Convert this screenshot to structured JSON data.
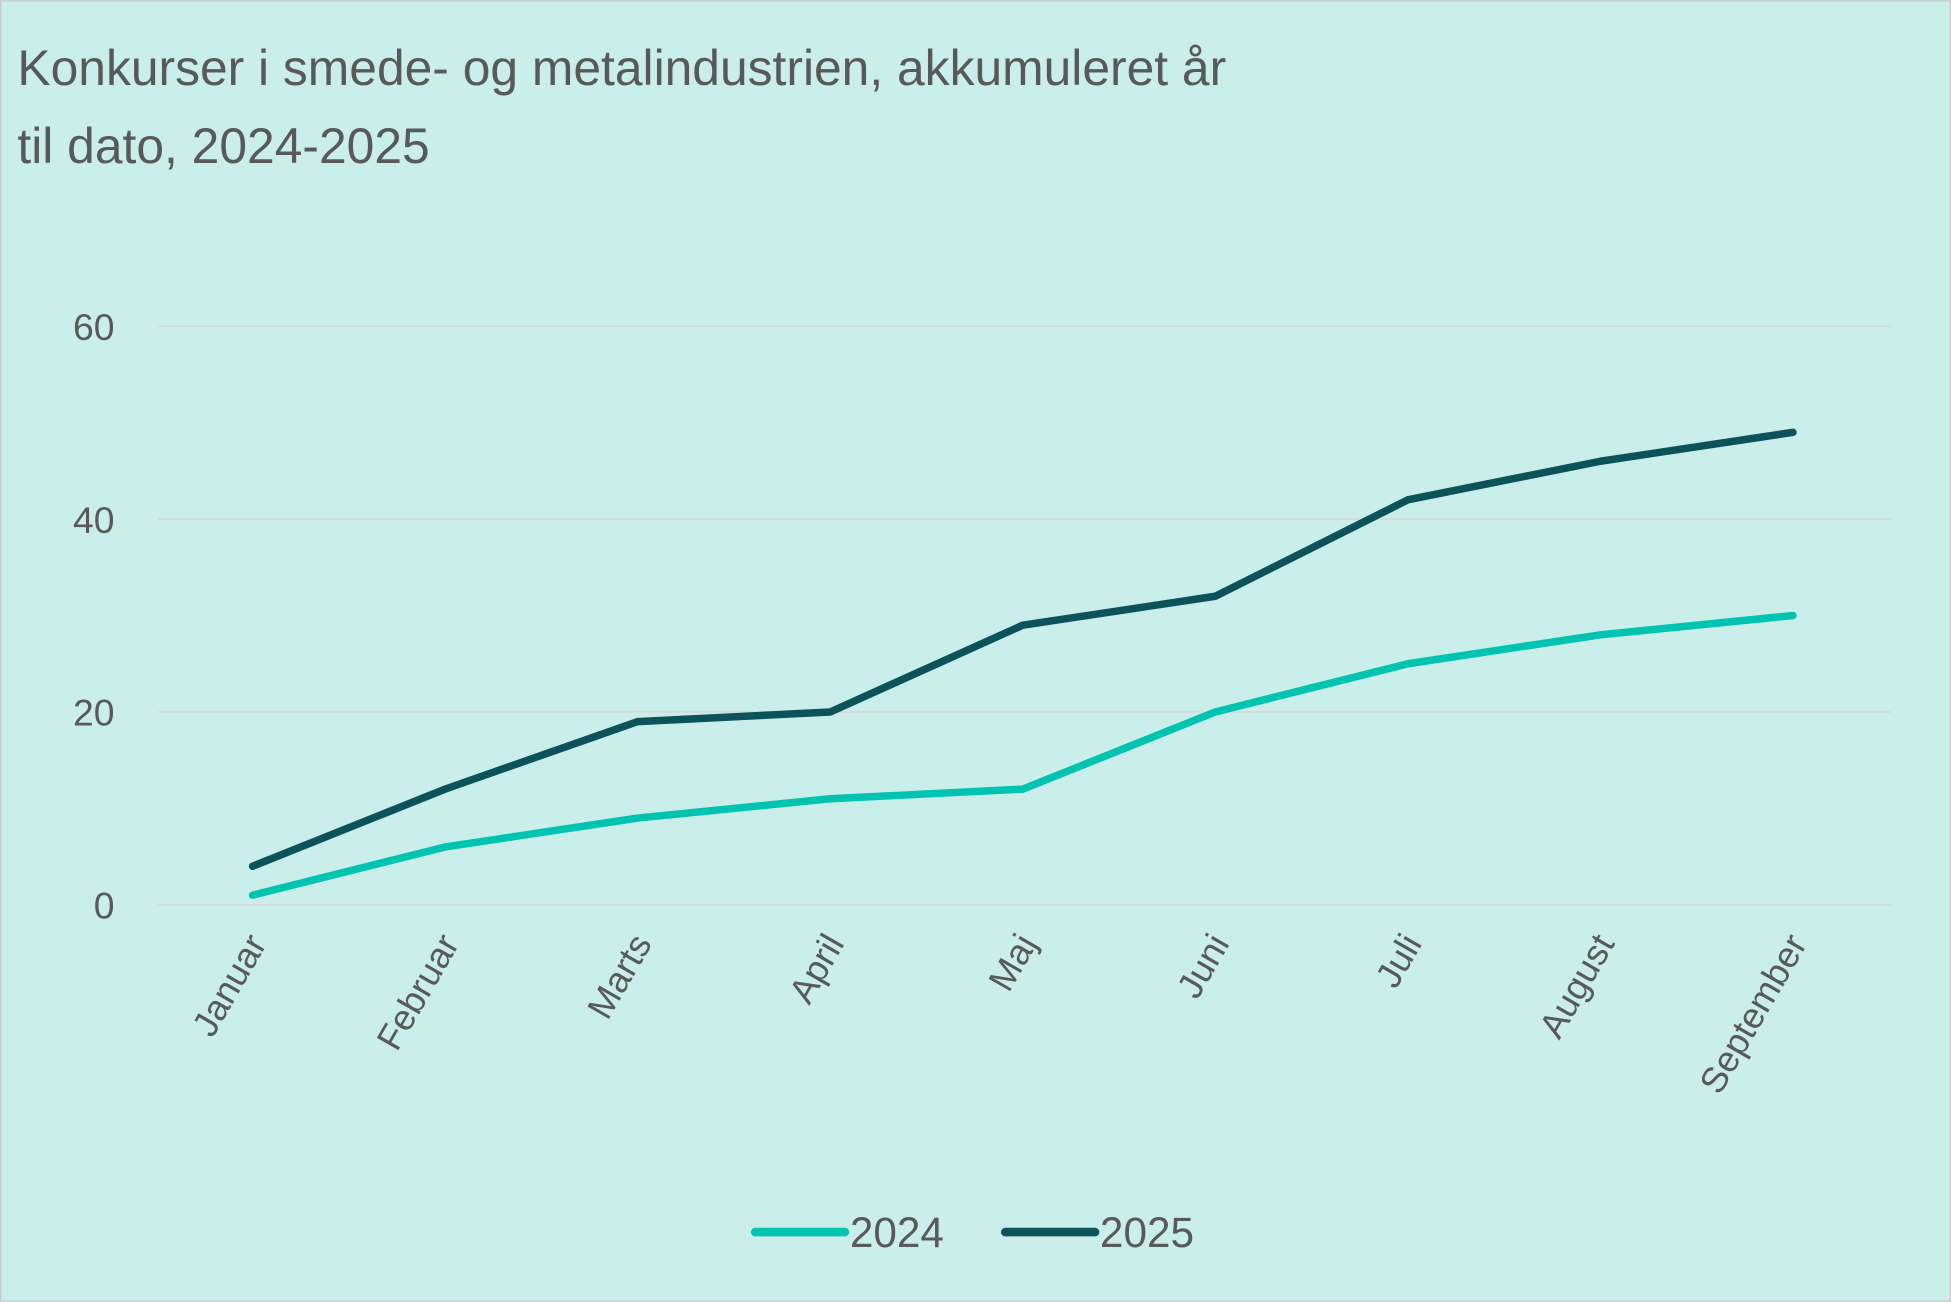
{
  "chart_data": {
    "type": "line",
    "title": [
      "Konkurser i smede- og metalindustrien, akkumuleret år",
      "til dato, 2024-2025"
    ],
    "categories": [
      "Januar",
      "Februar",
      "Marts",
      "April",
      "Maj",
      "Juni",
      "Juli",
      "August",
      "September"
    ],
    "series": [
      {
        "name": "2024",
        "color": "#00C4B0",
        "values": [
          1,
          6,
          9,
          11,
          12,
          20,
          25,
          28,
          30
        ]
      },
      {
        "name": "2025",
        "color": "#0B5259",
        "values": [
          4,
          12,
          19,
          20,
          29,
          32,
          42,
          46,
          49
        ]
      }
    ],
    "yticks": [
      0,
      20,
      40,
      60
    ],
    "ylim": [
      0,
      60
    ],
    "xlabel": "",
    "ylabel": "",
    "grid": true,
    "legend": "bottom-center",
    "background": "#CAEFEA"
  }
}
